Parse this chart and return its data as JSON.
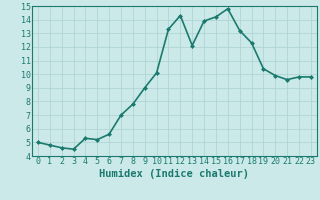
{
  "x": [
    0,
    1,
    2,
    3,
    4,
    5,
    6,
    7,
    8,
    9,
    10,
    11,
    12,
    13,
    14,
    15,
    16,
    17,
    18,
    19,
    20,
    21,
    22,
    23
  ],
  "y": [
    5.0,
    4.8,
    4.6,
    4.5,
    5.3,
    5.2,
    5.6,
    7.0,
    7.8,
    9.0,
    10.1,
    13.3,
    14.3,
    12.1,
    13.9,
    14.2,
    14.8,
    13.2,
    12.3,
    10.4,
    9.9,
    9.6,
    9.8,
    9.8
  ],
  "line_color": "#1a7a6e",
  "marker": "D",
  "marker_size": 2.0,
  "bg_color": "#cce9e9",
  "grid_color": "#b0d4d4",
  "xlabel": "Humidex (Indice chaleur)",
  "ylim": [
    4,
    15
  ],
  "xlim": [
    -0.5,
    23.5
  ],
  "yticks": [
    4,
    5,
    6,
    7,
    8,
    9,
    10,
    11,
    12,
    13,
    14,
    15
  ],
  "xticks": [
    0,
    1,
    2,
    3,
    4,
    5,
    6,
    7,
    8,
    9,
    10,
    11,
    12,
    13,
    14,
    15,
    16,
    17,
    18,
    19,
    20,
    21,
    22,
    23
  ],
  "xlabel_fontsize": 7.5,
  "tick_fontsize": 6.0,
  "line_width": 1.2
}
